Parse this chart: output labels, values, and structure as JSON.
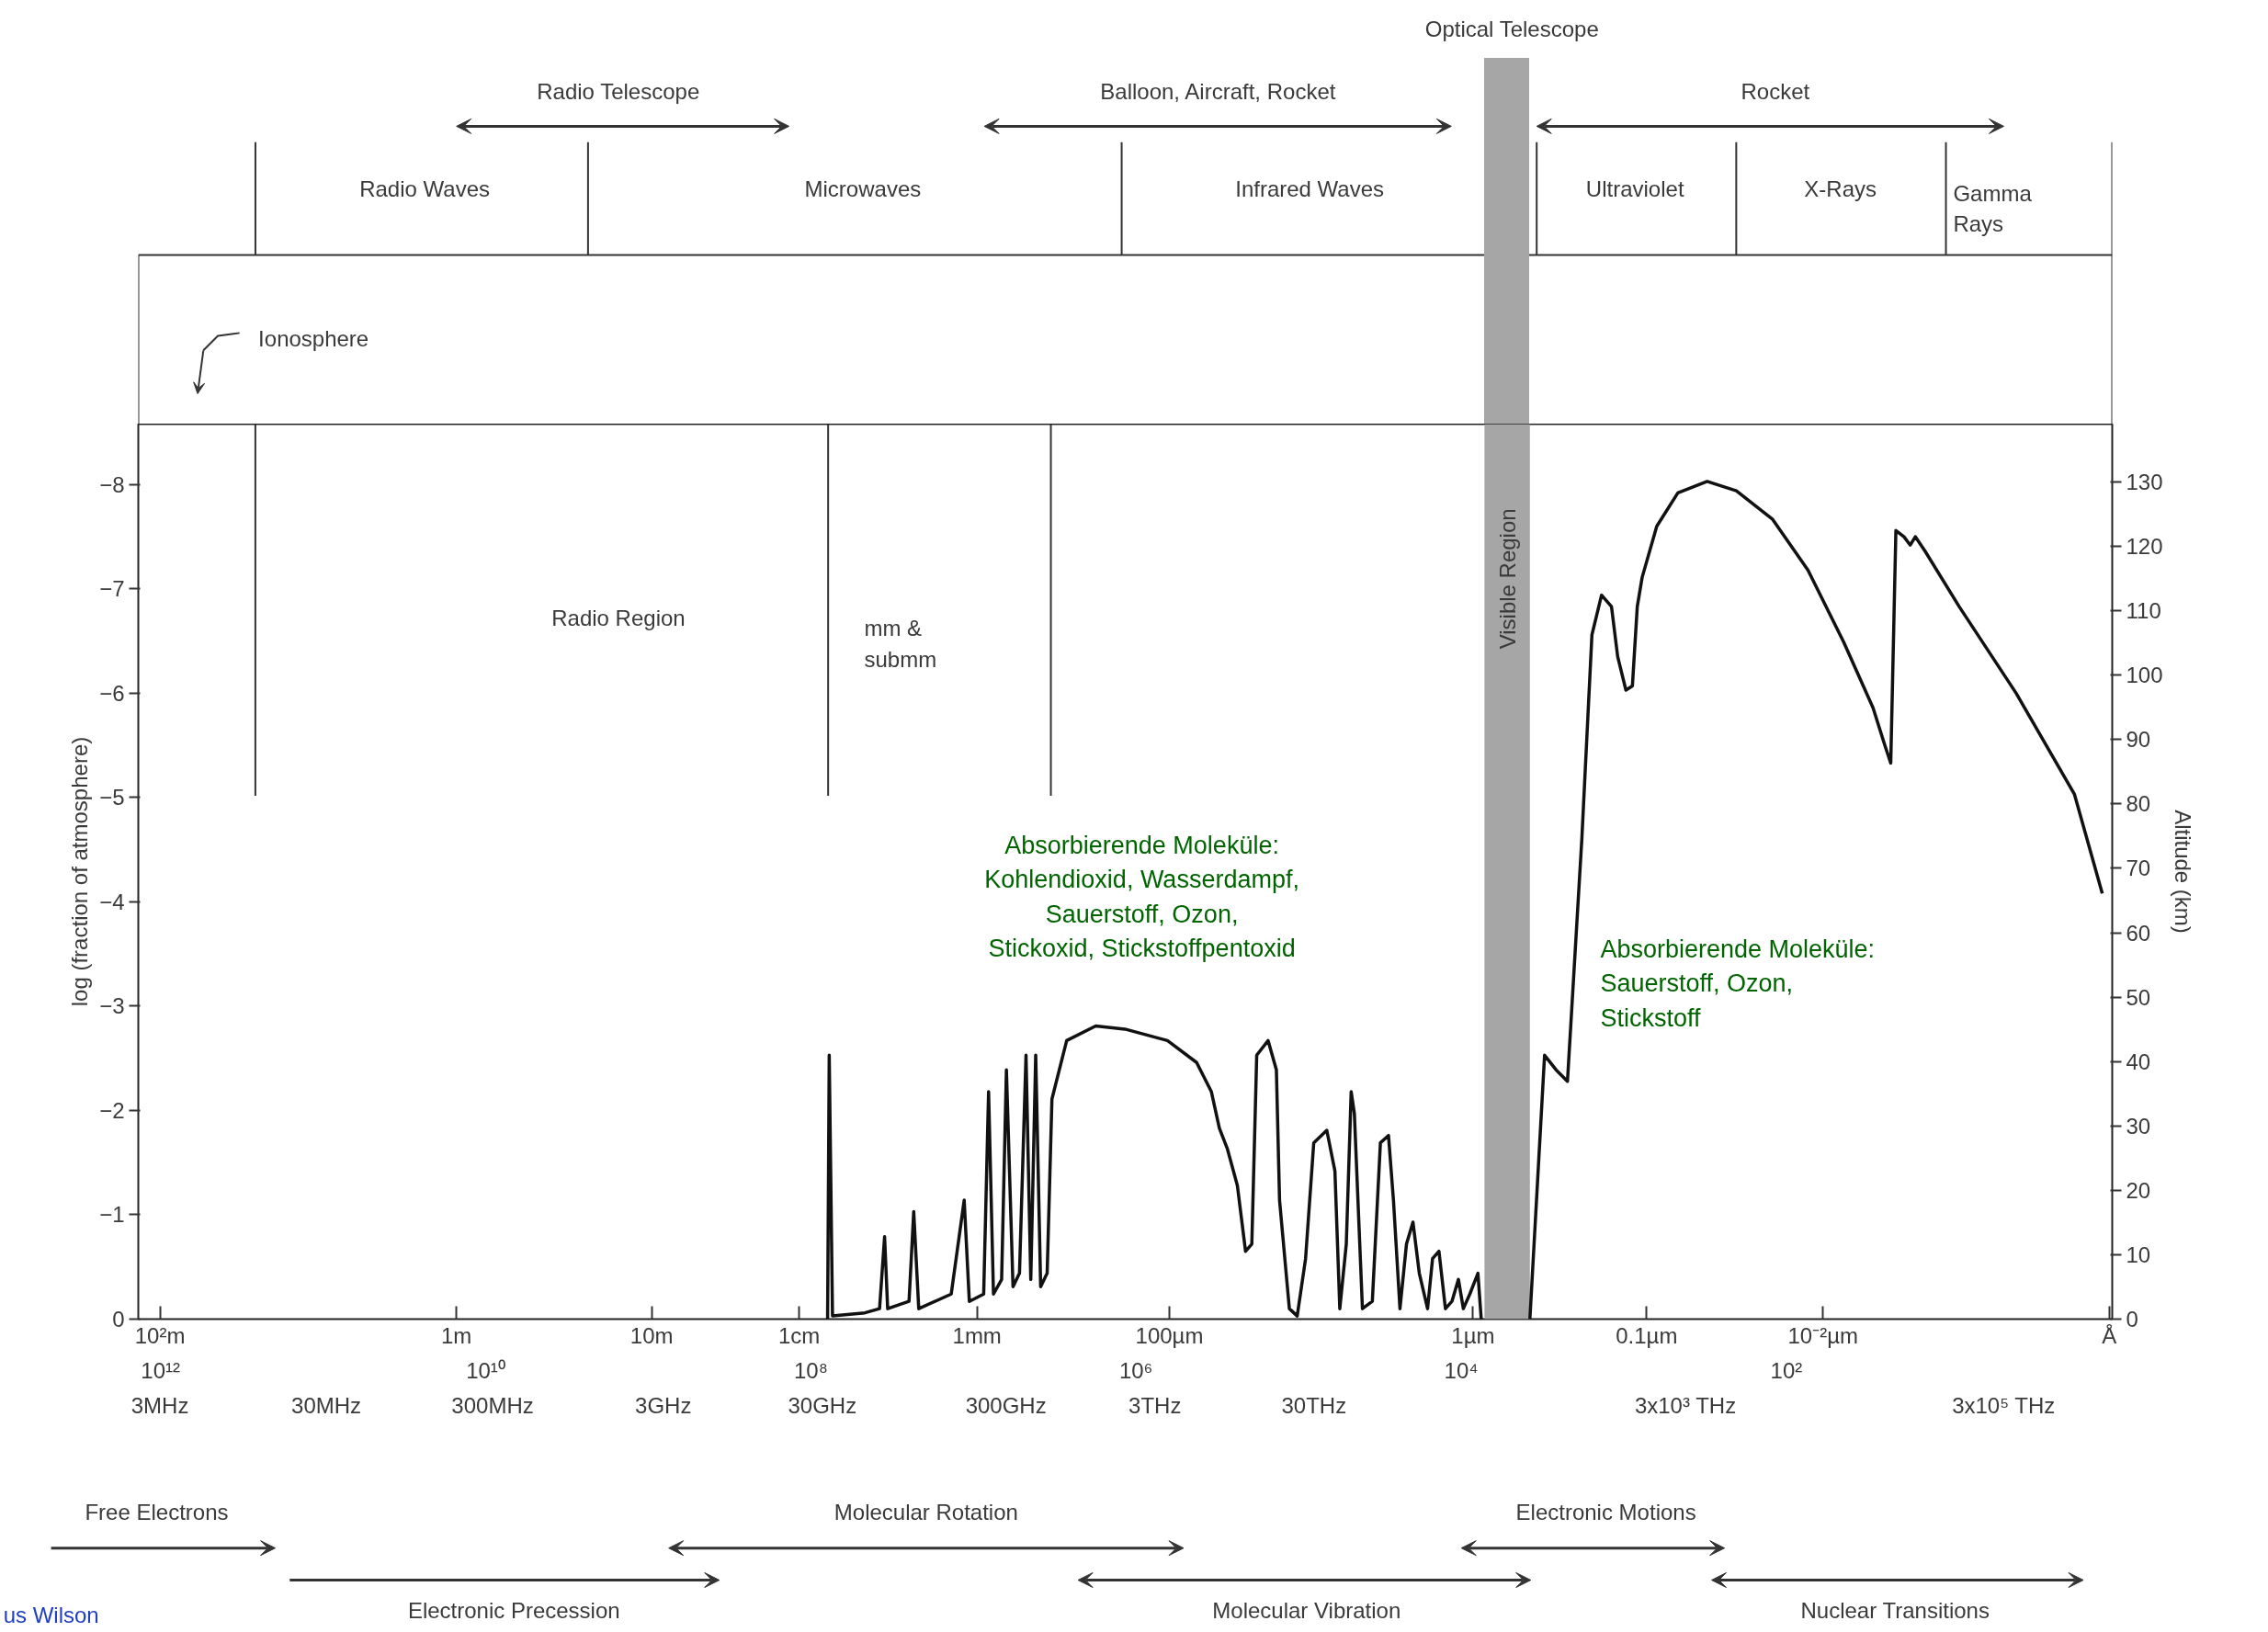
{
  "chart_data": {
    "type": "line",
    "ylabel": "log (fraction of atmosphere)",
    "y2label": "Altitude (km)",
    "log": "x",
    "xlim": [
      1370000000000.0,
      0.99
    ],
    "xticks": [
      {
        "value": 1000000000000.0,
        "label": "10¹²"
      },
      {
        "value": 10000000000.0,
        "label": "10¹⁰"
      },
      {
        "value": 100000000.0,
        "label": "10⁸"
      },
      {
        "value": 1000000.0,
        "label": "10⁶"
      },
      {
        "value": 10000.0,
        "label": "10⁴"
      },
      {
        "value": 100.0,
        "label": "10²"
      }
    ],
    "ylim": [
      0,
      -8.58
    ],
    "yticks": [
      0,
      -1,
      -2,
      -3,
      -4,
      -5,
      -6,
      -7,
      -8
    ],
    "y2lim": [
      0,
      139
    ],
    "y2ticks": [
      0,
      10,
      20,
      30,
      40,
      50,
      60,
      70,
      80,
      90,
      100,
      110,
      120,
      130
    ],
    "grid": false,
    "series": [
      {
        "color": "#111111",
        "x": [
          78900000.0,
          77100000.0,
          73600000.0,
          46500000.0,
          37800000.0,
          35200000.0,
          33700000.0,
          24900000.0,
          23300000.0,
          21700000.0,
          13700000.0,
          11400000.0,
          10600000.0,
          8650000.0,
          8070000.0,
          7530000.0,
          6710000.0,
          6270000.0,
          5710000.0,
          5210000.0,
          4750000.0,
          4440000.0,
          4140000.0,
          3860000.0,
          3520000.0,
          3290000.0,
          2670000.0,
          1770000.0,
          1170000.0,
          641000.0,
          424000.0,
          344000.0,
          307000.0,
          274000.0,
          238000.0,
          212000.0,
          194000.0,
          181000.0,
          154000.0,
          137000.0,
          131000.0,
          114000.0,
          102000.0,
          90600.0,
          80700.0,
          67100.0,
          59800.0,
          55800.0,
          50900.0,
          47500.0,
          45400.0,
          40500.0,
          35200.0,
          31400.0,
          28000.0,
          26100.0,
          23800.0,
          21700.0,
          19800.0,
          18100.0,
          16100.0,
          15000.0,
          13700.0,
          12500.0,
          11400.0,
          10400.0,
          9700.0,
          8850.0,
          7890.0,
          7530.0,
          5330.0,
          3780.0,
          3070.0,
          2610.0,
          2220.0,
          1810.0,
          1570.0,
          1370.0,
          1190.0,
          1090.0,
          970,
          885,
          826,
          771,
          627,
          465,
          307,
          203,
          122,
          73.6,
          44.4,
          29.3,
          24.9,
          22.8,
          21.2,
          18.9,
          17.3,
          16.1,
          14.0,
          8.65,
          3.86,
          1.69,
          1.14
        ],
        "values": [
          0,
          -2.53,
          -0.03,
          -0.06,
          -0.1,
          -0.79,
          -0.1,
          -0.17,
          -1.03,
          -0.1,
          -0.24,
          -1.14,
          -0.17,
          -0.24,
          -2.18,
          -0.24,
          -0.38,
          -2.39,
          -0.31,
          -0.44,
          -2.53,
          -0.38,
          -2.53,
          -0.31,
          -0.44,
          -2.11,
          -2.67,
          -2.81,
          -2.78,
          -2.67,
          -2.46,
          -2.18,
          -1.83,
          -1.63,
          -1.28,
          -0.65,
          -0.72,
          -2.53,
          -2.67,
          -2.39,
          -1.14,
          -0.1,
          -0.03,
          -0.58,
          -1.69,
          -1.81,
          -1.42,
          -0.1,
          -0.72,
          -2.18,
          -1.97,
          -0.1,
          -0.17,
          -1.69,
          -1.76,
          -1.14,
          -0.1,
          -0.72,
          -0.93,
          -0.44,
          -0.1,
          -0.58,
          -0.65,
          -0.1,
          -0.17,
          -0.38,
          -0.1,
          -0.24,
          -0.44,
          0,
          null,
          0,
          -2.53,
          -2.39,
          -2.28,
          -4.61,
          -6.56,
          -6.94,
          -6.83,
          -6.35,
          -6.03,
          -6.07,
          -6.83,
          -7.11,
          -7.6,
          -7.92,
          -8.03,
          -7.94,
          -7.67,
          -7.18,
          -6.49,
          -5.86,
          -5.51,
          -5.33,
          -7.56,
          -7.5,
          -7.42,
          -7.5,
          -7.36,
          -6.83,
          -6.0,
          -5.03,
          -4.08
        ]
      }
    ],
    "bands": [
      {
        "axis": "x",
        "from": 7190,
        "to": 3780,
        "label": "Visible Region",
        "color": "#a6a6a6"
      }
    ],
    "ref_lines": [
      {
        "axis": "x",
        "value": 261000000000.0
      },
      {
        "axis": "x",
        "value": 78300000.0
      },
      {
        "axis": "x",
        "value": 3340000.0
      }
    ],
    "annotations": [
      "Optical Telescope",
      "Radio Telescope",
      "Balloon, Aircraft, Rocket",
      "Rocket",
      "Radio Waves",
      "Microwaves",
      "Infrared Waves",
      "Ultraviolet",
      "X-Rays",
      "Gamma\nRays",
      "Ionosphere",
      "Radio Region",
      "mm &\nsubmm",
      "Absorbierende Moleküle:\nKohlendioxid, Wasserdampf,\nSauerstoff, Ozon,\nStickoxid, Stickstoffpentoxid",
      "Absorbierende Moleküle:\nSauerstoff, Ozon,\nStickstoff",
      "Free Electrons",
      "Molecular Rotation",
      "Electronic Motions",
      "Electronic Precession",
      "Molecular Vibration",
      "Nuclear Transitions",
      "us Wilson",
      "10²m",
      "1m",
      "10m",
      "1cm",
      "1mm",
      "100µm",
      "1µm",
      "0.1µm",
      "10⁻²µm",
      "Å",
      "3MHz",
      "30MHz",
      "300MHz",
      "3GHz",
      "30GHz",
      "300GHz",
      "3THz",
      "30THz",
      "3x10³ THz",
      "3x10⁵ THz"
    ]
  }
}
